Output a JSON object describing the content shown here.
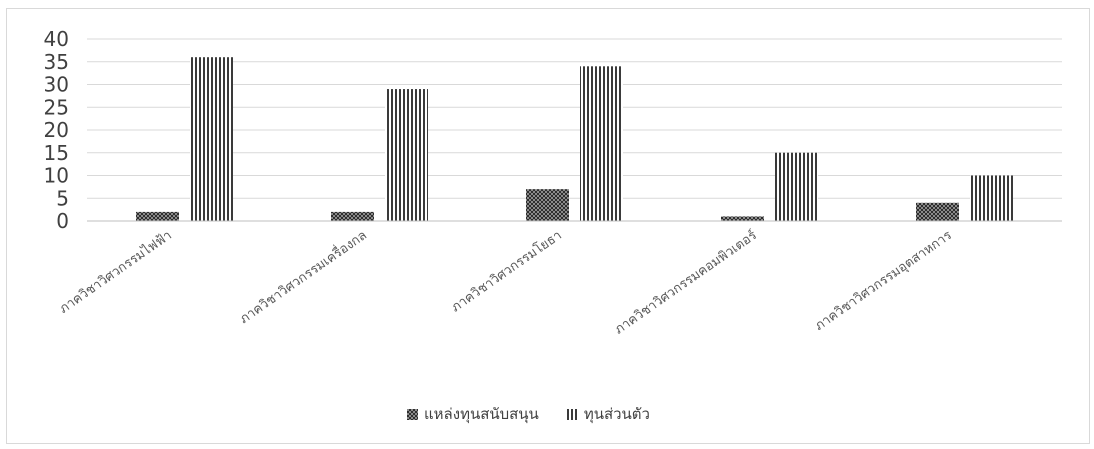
{
  "chart_data": {
    "type": "bar",
    "title": "",
    "xlabel": "",
    "ylabel": "",
    "ylim": [
      0,
      40
    ],
    "yticks": [
      0,
      5,
      10,
      15,
      20,
      25,
      30,
      35,
      40
    ],
    "grid": true,
    "legend_position": "bottom",
    "categories": [
      "ภาควิชาวิศวกรรมไฟฟ้า",
      "ภาควิชาวิศวกรรมเครื่องกล",
      "ภาควิชาวิศวกรรมโยธา",
      "ภาควิชาวิศวกรรมคอมพิวเตอร์",
      "ภาควิชาวิศวกรรมอุตสาหการ"
    ],
    "series": [
      {
        "name": "แหล่งทุนสนับสนุน",
        "values": [
          2,
          2,
          7,
          1,
          4
        ],
        "pattern": "dots",
        "color": "#3a3a3a"
      },
      {
        "name": "ทุนส่วนตัว",
        "values": [
          36,
          29,
          34,
          15,
          10
        ],
        "pattern": "vertical-lines",
        "color": "#3a3a3a"
      }
    ]
  },
  "colors": {
    "gridline": "#d9d9d9",
    "axis": "#bfbfbf",
    "bar_fill": "#3a3a3a"
  }
}
